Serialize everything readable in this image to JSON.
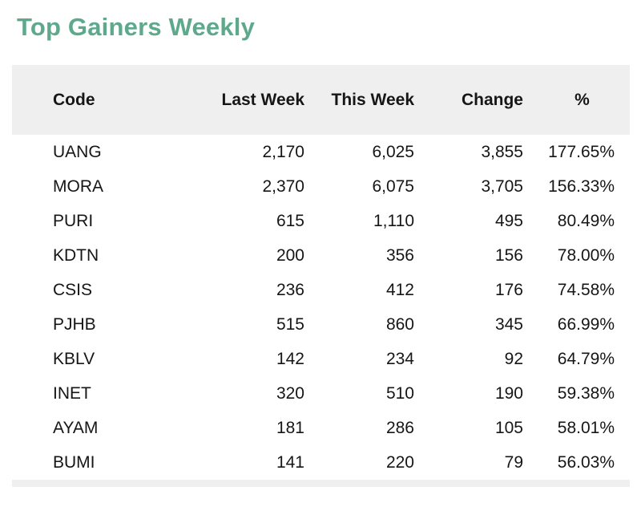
{
  "title": "Top Gainers Weekly",
  "theme": {
    "title_color": "#5ea98c",
    "header_bg": "#efefef",
    "text_color": "#161616"
  },
  "table": {
    "columns": [
      {
        "label": "Code",
        "align": "left"
      },
      {
        "label": "Last Week",
        "align": "right"
      },
      {
        "label": "This Week",
        "align": "right"
      },
      {
        "label": "Change",
        "align": "right"
      },
      {
        "label": "%",
        "align": "center"
      }
    ],
    "rows": [
      {
        "code": "UANG",
        "last_week": "2,170",
        "this_week": "6,025",
        "change": "3,855",
        "pct": "177.65%"
      },
      {
        "code": "MORA",
        "last_week": "2,370",
        "this_week": "6,075",
        "change": "3,705",
        "pct": "156.33%"
      },
      {
        "code": "PURI",
        "last_week": "615",
        "this_week": "1,110",
        "change": "495",
        "pct": "80.49%"
      },
      {
        "code": "KDTN",
        "last_week": "200",
        "this_week": "356",
        "change": "156",
        "pct": "78.00%"
      },
      {
        "code": "CSIS",
        "last_week": "236",
        "this_week": "412",
        "change": "176",
        "pct": "74.58%"
      },
      {
        "code": "PJHB",
        "last_week": "515",
        "this_week": "860",
        "change": "345",
        "pct": "66.99%"
      },
      {
        "code": "KBLV",
        "last_week": "142",
        "this_week": "234",
        "change": "92",
        "pct": "64.79%"
      },
      {
        "code": "INET",
        "last_week": "320",
        "this_week": "510",
        "change": "190",
        "pct": "59.38%"
      },
      {
        "code": "AYAM",
        "last_week": "181",
        "this_week": "286",
        "change": "105",
        "pct": "58.01%"
      },
      {
        "code": "BUMI",
        "last_week": "141",
        "this_week": "220",
        "change": "79",
        "pct": "56.03%"
      }
    ]
  },
  "chart_data": {
    "type": "table",
    "title": "Top Gainers Weekly",
    "columns": [
      "Code",
      "Last Week",
      "This Week",
      "Change",
      "%"
    ],
    "rows": [
      [
        "UANG",
        2170,
        6025,
        3855,
        "177.65%"
      ],
      [
        "MORA",
        2370,
        6075,
        3705,
        "156.33%"
      ],
      [
        "PURI",
        615,
        1110,
        495,
        "80.49%"
      ],
      [
        "KDTN",
        200,
        356,
        156,
        "78.00%"
      ],
      [
        "CSIS",
        236,
        412,
        176,
        "74.58%"
      ],
      [
        "PJHB",
        515,
        860,
        345,
        "66.99%"
      ],
      [
        "KBLV",
        142,
        234,
        92,
        "64.79%"
      ],
      [
        "INET",
        320,
        510,
        190,
        "59.38%"
      ],
      [
        "AYAM",
        181,
        286,
        105,
        "58.01%"
      ],
      [
        "BUMI",
        141,
        220,
        79,
        "56.03%"
      ]
    ]
  }
}
